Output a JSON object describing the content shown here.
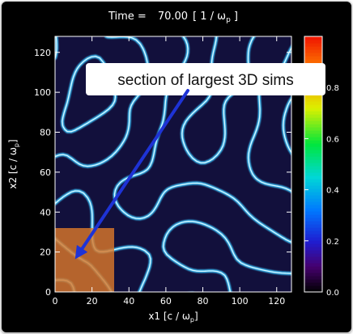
{
  "chart_data": {
    "type": "heatmap",
    "title_prefix": "Time =",
    "title_value": "70.00",
    "title_unit": "[ 1 / ω",
    "title_unit_sub": "p",
    "title_unit_end": " ]",
    "xlabel": "x1 [c / ω",
    "xlabel_sub": "p",
    "xlabel_end": "]",
    "ylabel": "x2 [c / ω",
    "ylabel_sub": "p",
    "ylabel_end": "]",
    "x_ticks": [
      0,
      20,
      40,
      60,
      80,
      100,
      120
    ],
    "y_ticks": [
      0,
      20,
      40,
      60,
      80,
      100,
      120
    ],
    "xlim": [
      0,
      128
    ],
    "ylim": [
      0,
      128
    ],
    "colorbar": {
      "ticks": [
        "0.0",
        "0.2",
        "0.4",
        "0.6",
        "0.8"
      ],
      "tick_values": [
        0.0,
        0.2,
        0.4,
        0.6,
        0.8
      ],
      "range": [
        0.0,
        1.0
      ]
    },
    "highlight_region": {
      "x": [
        0,
        32
      ],
      "y": [
        0,
        32
      ],
      "color": "#d9772a"
    },
    "annotation": {
      "text": "section of largest 3D sims",
      "arrow_to": [
        12,
        18
      ],
      "arrow_color": "#1e33d6"
    }
  },
  "colors": {
    "background": "#000000",
    "field_dark": "#12103c",
    "filament": "#39b6ee",
    "filament_core": "#d8f6ff"
  }
}
